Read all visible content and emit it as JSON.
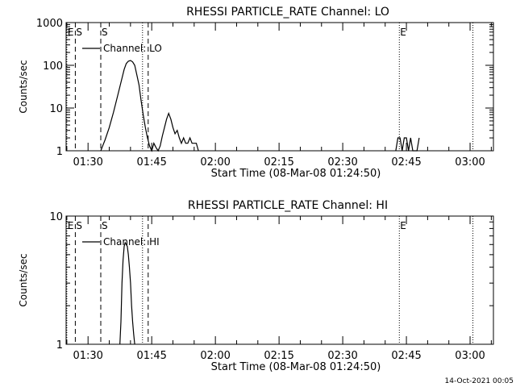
{
  "timestamp": "14-Oct-2021 00:05",
  "chart_data": [
    {
      "type": "line",
      "title": "RHESSI PARTICLE_RATE Channel: LO",
      "xlabel": "Start Time (08-Mar-08 01:24:50)",
      "ylabel": "Counts/sec",
      "yscale": "log",
      "xlim": [
        "01:24:50",
        "03:05:30"
      ],
      "ylim": [
        1,
        1000
      ],
      "x_ticks": [
        "01:30",
        "01:45",
        "02:00",
        "02:15",
        "02:30",
        "02:45",
        "03:00"
      ],
      "y_ticks": [
        "1",
        "10",
        "100",
        "1000"
      ],
      "legend": "top-left",
      "series": [
        {
          "name": "Channel: LO",
          "x": [
            "01:33:00",
            "01:34:00",
            "01:35:00",
            "01:36:00",
            "01:37:00",
            "01:38:00",
            "01:38:30",
            "01:39:00",
            "01:39:30",
            "01:40:00",
            "01:40:30",
            "01:41:00",
            "01:41:30",
            "01:42:00",
            "01:42:30",
            "01:43:00",
            "01:43:30",
            "01:44:00",
            "01:44:30",
            "01:45:00",
            "01:45:30",
            "01:46:00",
            "01:46:30",
            "01:47:00",
            "01:47:30",
            "01:48:00",
            "01:48:30",
            "01:49:00",
            "01:49:30",
            "01:50:00",
            "01:50:30",
            "01:51:00",
            "01:51:30",
            "01:52:00",
            "01:52:30",
            "01:53:00",
            "01:53:30",
            "01:54:00",
            "01:54:30",
            "01:55:00",
            "01:55:30",
            "01:56:00",
            "02:42:30",
            "02:43:00",
            "02:43:30",
            "02:44:00",
            "02:44:30",
            "02:45:00",
            "02:45:30",
            "02:46:00",
            "02:46:30",
            "02:47:00",
            "02:47:30",
            "02:48:00"
          ],
          "values": [
            1,
            1.8,
            3.5,
            8,
            20,
            50,
            80,
            110,
            125,
            130,
            120,
            100,
            60,
            35,
            15,
            7,
            3.5,
            2,
            1.3,
            1,
            1.5,
            1.2,
            1,
            1.3,
            2.2,
            3.5,
            5.5,
            7.5,
            5.5,
            3.5,
            2.5,
            3,
            2,
            1.5,
            2,
            1.5,
            1.5,
            2,
            1.5,
            1.5,
            1.5,
            1,
            1,
            2,
            2,
            1,
            2,
            2,
            1,
            2,
            1,
            1,
            1,
            2
          ]
        }
      ],
      "annotations": [
        {
          "label": "E",
          "x": "01:25:00",
          "style": "dotted"
        },
        {
          "label": "S",
          "x": "01:27:00",
          "style": "dashed"
        },
        {
          "label": "S",
          "x": "01:33:00",
          "style": "dashed"
        },
        {
          "label": "",
          "x": "01:42:50",
          "style": "dotted"
        },
        {
          "label": "",
          "x": "01:44:10",
          "style": "dashed"
        },
        {
          "label": "E",
          "x": "02:43:20",
          "style": "dotted"
        },
        {
          "label": "",
          "x": "03:00:40",
          "style": "dotted"
        }
      ]
    },
    {
      "type": "line",
      "title": "RHESSI PARTICLE_RATE Channel: HI",
      "xlabel": "Start Time (08-Mar-08 01:24:50)",
      "ylabel": "Counts/sec",
      "yscale": "log",
      "xlim": [
        "01:24:50",
        "03:05:30"
      ],
      "ylim": [
        1,
        10
      ],
      "x_ticks": [
        "01:30",
        "01:45",
        "02:00",
        "02:15",
        "02:30",
        "02:45",
        "03:00"
      ],
      "y_ticks": [
        "1",
        "10"
      ],
      "legend": "top-left",
      "series": [
        {
          "name": "Channel: HI",
          "x": [
            "01:37:30",
            "01:37:45",
            "01:38:00",
            "01:38:15",
            "01:38:30",
            "01:38:45",
            "01:39:00",
            "01:39:15",
            "01:39:30",
            "01:39:45",
            "01:40:00",
            "01:40:15",
            "01:40:30",
            "01:40:45",
            "01:41:00"
          ],
          "values": [
            1,
            1.5,
            3,
            4.5,
            5.8,
            6.2,
            6,
            5.8,
            5,
            4,
            3,
            2,
            1.5,
            1.2,
            1
          ]
        }
      ],
      "annotations": [
        {
          "label": "E",
          "x": "01:25:00",
          "style": "dotted"
        },
        {
          "label": "S",
          "x": "01:27:00",
          "style": "dashed"
        },
        {
          "label": "S",
          "x": "01:33:00",
          "style": "dashed"
        },
        {
          "label": "",
          "x": "01:42:50",
          "style": "dotted"
        },
        {
          "label": "",
          "x": "01:44:10",
          "style": "dashed"
        },
        {
          "label": "E",
          "x": "02:43:20",
          "style": "dotted"
        },
        {
          "label": "",
          "x": "03:00:40",
          "style": "dotted"
        }
      ]
    }
  ]
}
